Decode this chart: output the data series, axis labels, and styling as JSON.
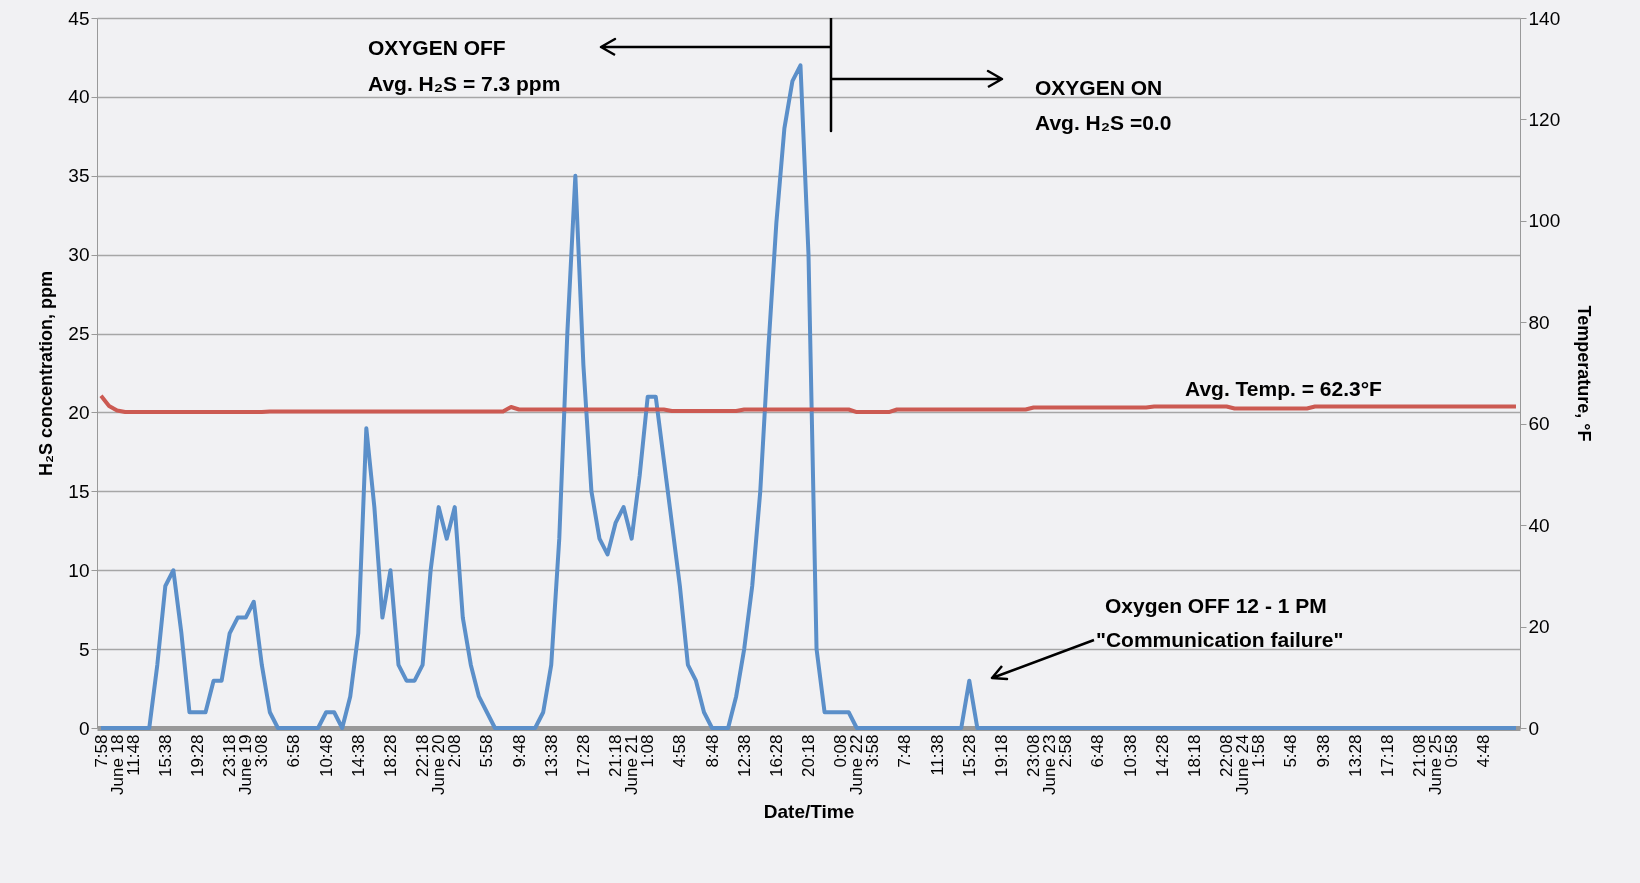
{
  "chart_data": {
    "type": "line",
    "xlabel": "Date/Time",
    "ylabel": "H₂S concentration, ppm",
    "y2label": "Temperature, °F",
    "ylim": [
      0,
      45
    ],
    "yticks": [
      0,
      5,
      10,
      15,
      20,
      25,
      30,
      35,
      40,
      45
    ],
    "y2lim": [
      0,
      140
    ],
    "y2ticks": [
      0,
      20,
      40,
      60,
      80,
      100,
      120,
      140
    ],
    "categories": [
      "7:58",
      null,
      "June 18",
      null,
      "11:48",
      null,
      null,
      null,
      "15:38",
      null,
      null,
      null,
      "19:28",
      null,
      null,
      null,
      "23:18",
      null,
      "June 19",
      null,
      "3:08",
      null,
      null,
      null,
      "6:58",
      null,
      null,
      null,
      "10:48",
      null,
      null,
      null,
      "14:38",
      null,
      null,
      null,
      "18:28",
      null,
      null,
      null,
      "22:18",
      null,
      "June 20",
      null,
      "2:08",
      null,
      null,
      null,
      "5:58",
      null,
      null,
      null,
      "9:48",
      null,
      null,
      null,
      "13:38",
      null,
      null,
      null,
      "17:28",
      null,
      null,
      null,
      "21:18",
      null,
      "June 21",
      null,
      "1:08",
      null,
      null,
      null,
      "4:58",
      null,
      null,
      null,
      "8:48",
      null,
      null,
      null,
      "12:38",
      null,
      null,
      null,
      "16:28",
      null,
      null,
      null,
      "20:18",
      null,
      null,
      null,
      "0:08",
      null,
      "June 22",
      null,
      "3:58",
      null,
      null,
      null,
      "7:48",
      null,
      null,
      null,
      "11:38",
      null,
      null,
      null,
      "15:28",
      null,
      null,
      null,
      "19:18",
      null,
      null,
      null,
      "23:08",
      null,
      "June 23",
      null,
      "2:58",
      null,
      null,
      null,
      "6:48",
      null,
      null,
      null,
      "10:38",
      null,
      null,
      null,
      "14:28",
      null,
      null,
      null,
      "18:18",
      null,
      null,
      null,
      "22:08",
      null,
      "June 24",
      null,
      "1:58",
      null,
      null,
      null,
      "5:48",
      null,
      null,
      null,
      "9:38",
      null,
      null,
      null,
      "13:28",
      null,
      null,
      null,
      "17:18",
      null,
      null,
      null,
      "21:08",
      null,
      "June 25",
      null,
      "0:58",
      null,
      null,
      null,
      "4:48",
      null,
      null,
      null,
      null
    ],
    "grid": "y",
    "series": [
      {
        "color": "#5b8fc9",
        "values": [
          0,
          0,
          0,
          0,
          0,
          0,
          0,
          4,
          9,
          10,
          6,
          1,
          1,
          1,
          3,
          3,
          6,
          7,
          7,
          8,
          4,
          1,
          0,
          0,
          0,
          0,
          0,
          0,
          1,
          1,
          0,
          2,
          6,
          19,
          14,
          7,
          10,
          4,
          3,
          3,
          4,
          10,
          14,
          12,
          14,
          7,
          4,
          2,
          1,
          0,
          0,
          0,
          0,
          0,
          0,
          1,
          4,
          12,
          25,
          35,
          23,
          15,
          12,
          11,
          13,
          14,
          12,
          16,
          21,
          21,
          17,
          13,
          9,
          4,
          3,
          1,
          0,
          0,
          0,
          2,
          5,
          9,
          15,
          24,
          32,
          38,
          41,
          42,
          30,
          5,
          1,
          1,
          1,
          1,
          0,
          0,
          0,
          0,
          0,
          0,
          0,
          0,
          0,
          0,
          0,
          0,
          0,
          0,
          3,
          0,
          0,
          0,
          0,
          0,
          0,
          0,
          0,
          0,
          0,
          0,
          0,
          0,
          0,
          0,
          0,
          0,
          0,
          0,
          0,
          0,
          0,
          0,
          0,
          0,
          0,
          0,
          0,
          0,
          0,
          0,
          0,
          0,
          0,
          0,
          0,
          0,
          0,
          0,
          0,
          0,
          0,
          0,
          0,
          0,
          0,
          0,
          0,
          0,
          0,
          0,
          0,
          0,
          0,
          0,
          0,
          0,
          0,
          0,
          0,
          0,
          0,
          0,
          0,
          0,
          0,
          0,
          0
        ]
      },
      {
        "color": "#cc5a52",
        "axis": "y2",
        "values": [
          65.5,
          63.5,
          62.6,
          62.3,
          62.3,
          62.3,
          62.3,
          62.3,
          62.3,
          62.3,
          62.3,
          62.3,
          62.3,
          62.3,
          62.3,
          62.3,
          62.3,
          62.3,
          62.3,
          62.3,
          62.3,
          62.4,
          62.4,
          62.4,
          62.4,
          62.4,
          62.4,
          62.4,
          62.4,
          62.4,
          62.4,
          62.4,
          62.4,
          62.4,
          62.4,
          62.4,
          62.4,
          62.4,
          62.4,
          62.4,
          62.4,
          62.4,
          62.4,
          62.4,
          62.4,
          62.4,
          62.4,
          62.4,
          62.4,
          62.4,
          62.4,
          63.3,
          62.8,
          62.8,
          62.8,
          62.8,
          62.8,
          62.8,
          62.8,
          62.8,
          62.8,
          62.8,
          62.8,
          62.8,
          62.8,
          62.8,
          62.8,
          62.8,
          62.8,
          62.8,
          62.8,
          62.5,
          62.5,
          62.5,
          62.5,
          62.5,
          62.5,
          62.5,
          62.5,
          62.5,
          62.8,
          62.8,
          62.8,
          62.8,
          62.8,
          62.8,
          62.8,
          62.8,
          62.8,
          62.8,
          62.8,
          62.8,
          62.8,
          62.8,
          62.3,
          62.3,
          62.3,
          62.3,
          62.3,
          62.8,
          62.8,
          62.8,
          62.8,
          62.8,
          62.8,
          62.8,
          62.8,
          62.8,
          62.8,
          62.8,
          62.8,
          62.8,
          62.8,
          62.8,
          62.8,
          62.8,
          63.2,
          63.2,
          63.2,
          63.2,
          63.2,
          63.2,
          63.2,
          63.2,
          63.2,
          63.2,
          63.2,
          63.2,
          63.2,
          63.2,
          63.2,
          63.4,
          63.4,
          63.4,
          63.4,
          63.4,
          63.4,
          63.4,
          63.4,
          63.4,
          63.4,
          63,
          63,
          63,
          63,
          63,
          63,
          63,
          63,
          63,
          63,
          63.4,
          63.4,
          63.4,
          63.4,
          63.4,
          63.4,
          63.4,
          63.4,
          63.4,
          63.4,
          63.4,
          63.4,
          63.4,
          63.4,
          63.4,
          63.4,
          63.4,
          63.4,
          63.4,
          63.4,
          63.4,
          63.4,
          63.4,
          63.4,
          63.4,
          63.4
        ]
      }
    ],
    "annotations": [
      "OXYGEN OFF",
      "Avg. H₂S = 7.3 ppm",
      "OXYGEN ON",
      "Avg. H₂S =0.0",
      "Avg.  Temp. = 62.3°F",
      "Oxygen OFF 12 - 1 PM",
      "\"Communication failure\""
    ]
  }
}
